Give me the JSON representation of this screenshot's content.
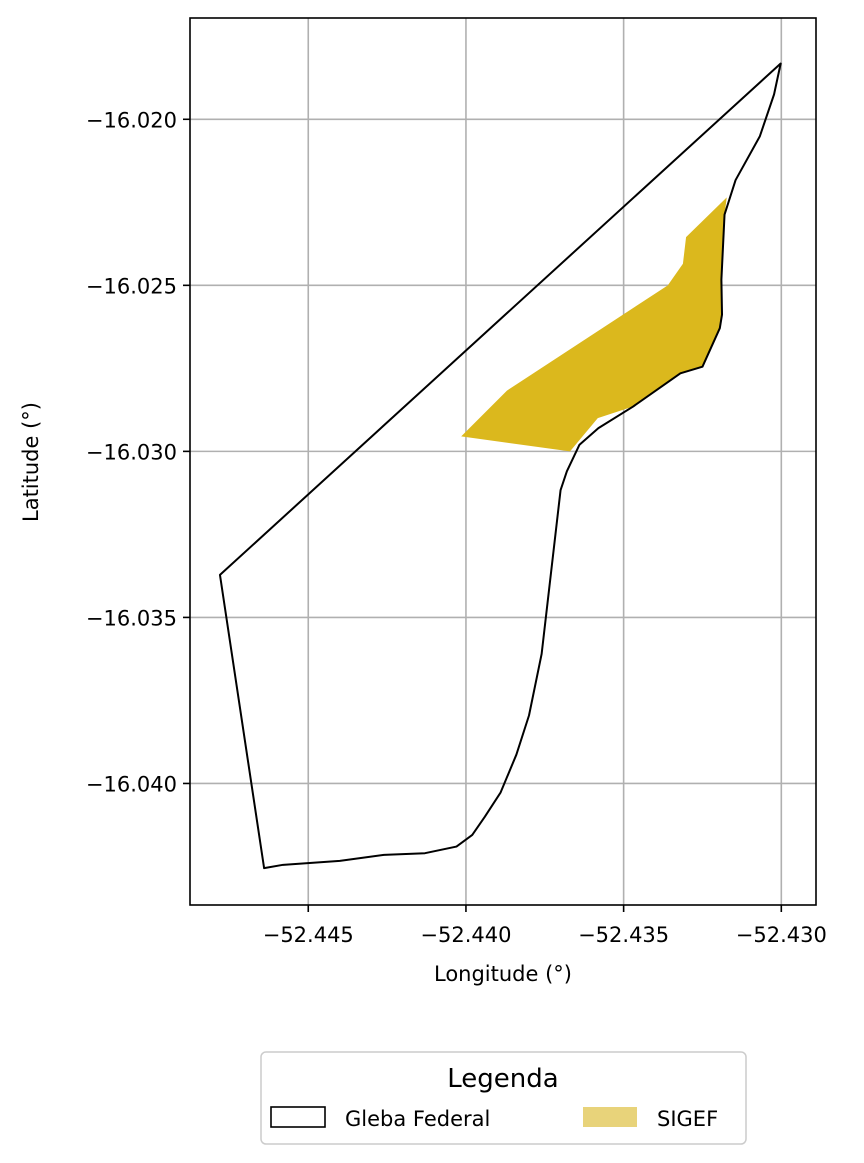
{
  "chart_data": {
    "type": "map",
    "xlabel": "Longitude (°)",
    "ylabel": "Latitude (°)",
    "xlim": [
      -52.44875,
      -52.4289
    ],
    "ylim": [
      -16.04366,
      -16.01695
    ],
    "xticks": [
      -52.445,
      -52.44,
      -52.435,
      -52.43
    ],
    "xtick_labels": [
      "−52.445",
      "−52.440",
      "−52.435",
      "−52.430"
    ],
    "yticks": [
      -16.02,
      -16.025,
      -16.03,
      -16.035,
      -16.04
    ],
    "ytick_labels": [
      "−16.020",
      "−16.025",
      "−16.030",
      "−16.035",
      "−16.040"
    ],
    "grid": true,
    "legend": {
      "title": "Legenda",
      "placement": "bottom-center, below axes",
      "entries": [
        {
          "label": "Gleba Federal",
          "style": "outline"
        },
        {
          "label": "SIGEF",
          "style": "fill"
        }
      ]
    },
    "layers": [
      {
        "name": "Gleba Federal",
        "fill": "none",
        "edge_color": "#000000",
        "polygon": [
          [
            -52.43002,
            -16.01832
          ],
          [
            -52.43023,
            -16.01925
          ],
          [
            -52.43068,
            -16.02051
          ],
          [
            -52.43145,
            -16.02183
          ],
          [
            -52.4318,
            -16.02287
          ],
          [
            -52.4319,
            -16.02483
          ],
          [
            -52.43188,
            -16.02588
          ],
          [
            -52.43195,
            -16.02629
          ],
          [
            -52.4325,
            -16.02745
          ],
          [
            -52.4332,
            -16.02765
          ],
          [
            -52.4347,
            -16.02865
          ],
          [
            -52.4358,
            -16.0293
          ],
          [
            -52.4364,
            -16.0298
          ],
          [
            -52.4368,
            -16.0306
          ],
          [
            -52.437,
            -16.03117
          ],
          [
            -52.4376,
            -16.0361
          ],
          [
            -52.438,
            -16.03795
          ],
          [
            -52.4384,
            -16.03913
          ],
          [
            -52.4389,
            -16.04027
          ],
          [
            -52.4394,
            -16.041
          ],
          [
            -52.4398,
            -16.04155
          ],
          [
            -52.4403,
            -16.0419
          ],
          [
            -52.4413,
            -16.0421
          ],
          [
            -52.4426,
            -16.04215
          ],
          [
            -52.444,
            -16.04233
          ],
          [
            -52.4458,
            -16.04245
          ],
          [
            -52.4464,
            -16.04255
          ],
          [
            -52.4478,
            -16.03372
          ],
          [
            -52.43002,
            -16.01832
          ]
        ]
      },
      {
        "name": "SIGEF",
        "fill": "#dbb81d",
        "legend_fill": "#e8d37a",
        "polygon": [
          [
            -52.43173,
            -16.02235
          ],
          [
            -52.43302,
            -16.02355
          ],
          [
            -52.43312,
            -16.02435
          ],
          [
            -52.4336,
            -16.025
          ],
          [
            -52.4387,
            -16.02817
          ],
          [
            -52.44015,
            -16.02955
          ],
          [
            -52.4367,
            -16.03
          ],
          [
            -52.43582,
            -16.029
          ],
          [
            -52.4347,
            -16.02865
          ],
          [
            -52.4332,
            -16.02765
          ],
          [
            -52.4325,
            -16.02745
          ],
          [
            -52.43195,
            -16.02629
          ],
          [
            -52.43188,
            -16.02588
          ],
          [
            -52.4319,
            -16.02483
          ],
          [
            -52.4318,
            -16.02287
          ]
        ]
      }
    ]
  }
}
